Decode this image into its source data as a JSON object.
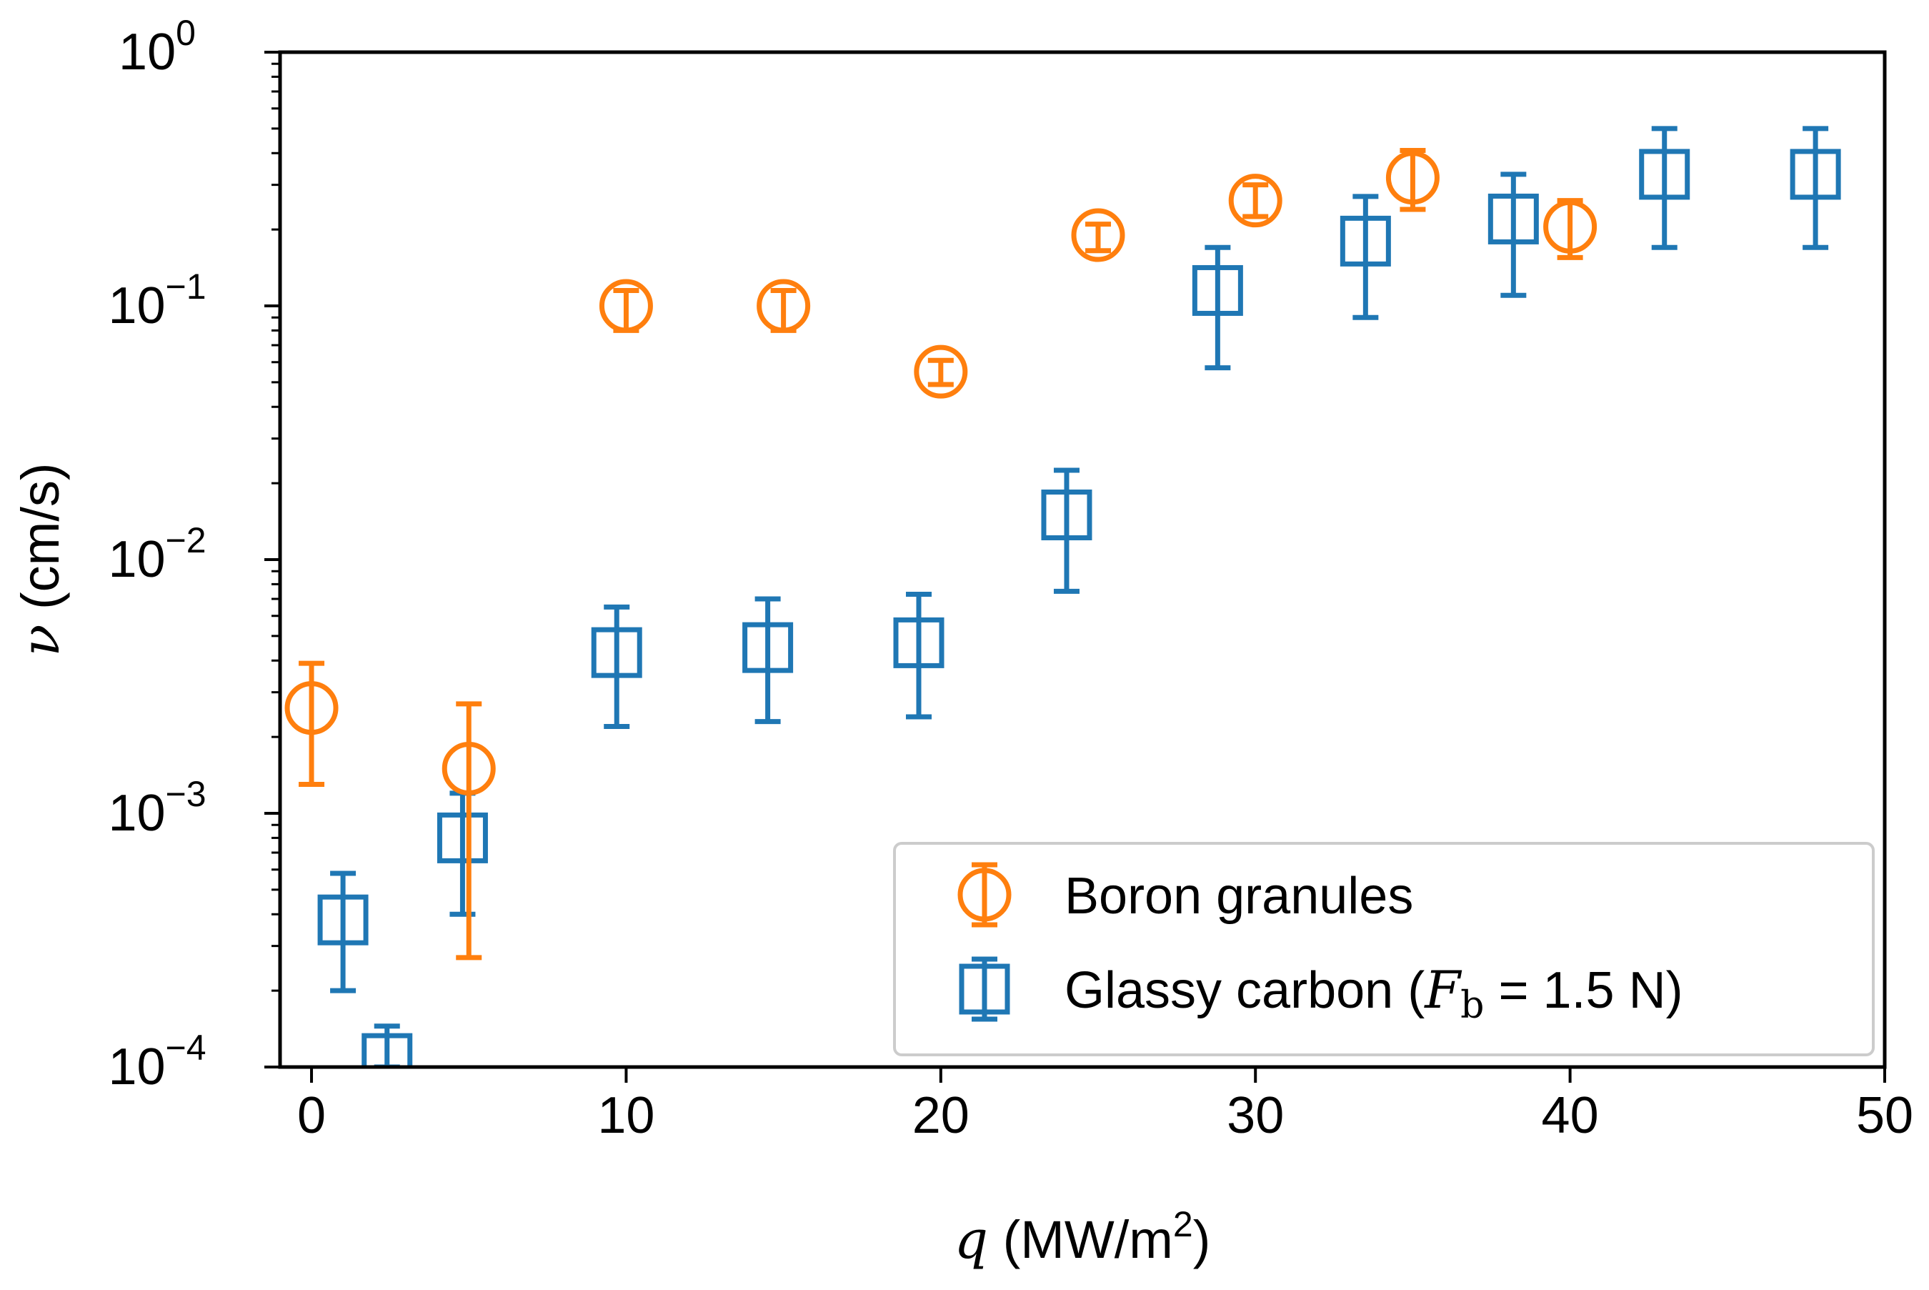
{
  "chart_data": {
    "type": "scatter",
    "title": "",
    "xlabel": {
      "symbol": "q",
      "text": "(MW/m",
      "sup": "2",
      "close": ")"
    },
    "ylabel": {
      "symbol": "ν",
      "text": "(cm/s)"
    },
    "xlim": [
      -1,
      50
    ],
    "ylim": [
      0.0001,
      1
    ],
    "yscale": "log",
    "grid": false,
    "legend_position": "lower-right",
    "xticks": [
      0,
      10,
      20,
      30,
      40,
      50
    ],
    "xtick_labels": [
      "0",
      "10",
      "20",
      "30",
      "40",
      "50"
    ],
    "yticks": [
      0.0001,
      0.001,
      0.01,
      0.1,
      1
    ],
    "ytick_labels": [
      {
        "base": "10",
        "exp": "−4"
      },
      {
        "base": "10",
        "exp": "−3"
      },
      {
        "base": "10",
        "exp": "−2"
      },
      {
        "base": "10",
        "exp": "−1"
      },
      {
        "base": "10",
        "exp": "0"
      }
    ],
    "series": [
      {
        "name": "Boron granules",
        "marker": "circle",
        "color": "#ff7f0e",
        "points": [
          {
            "x": 0,
            "y": 0.0026,
            "ylo": 0.0013,
            "yhi": 0.0039
          },
          {
            "x": 5,
            "y": 0.0015,
            "ylo": 0.00027,
            "yhi": 0.0027
          },
          {
            "x": 10,
            "y": 0.1,
            "ylo": 0.08,
            "yhi": 0.115
          },
          {
            "x": 15,
            "y": 0.1,
            "ylo": 0.08,
            "yhi": 0.115
          },
          {
            "x": 20,
            "y": 0.055,
            "ylo": 0.049,
            "yhi": 0.061
          },
          {
            "x": 25,
            "y": 0.19,
            "ylo": 0.165,
            "yhi": 0.21
          },
          {
            "x": 30,
            "y": 0.26,
            "ylo": 0.225,
            "yhi": 0.3
          },
          {
            "x": 35,
            "y": 0.32,
            "ylo": 0.24,
            "yhi": 0.41
          },
          {
            "x": 40,
            "y": 0.205,
            "ylo": 0.155,
            "yhi": 0.26
          }
        ]
      },
      {
        "name": "Glassy carbon (",
        "name_symbol": "F",
        "name_sub": "b",
        "name_tail": " = 1.5 N)",
        "marker": "square",
        "color": "#1f77b4",
        "points": [
          {
            "x": 1,
            "y": 0.00038,
            "ylo": 0.0002,
            "yhi": 0.00058
          },
          {
            "x": 2.4,
            "y": 0.000108,
            "ylo": 0.0001,
            "yhi": 0.000145
          },
          {
            "x": 4.8,
            "y": 0.0008,
            "ylo": 0.0004,
            "yhi": 0.0012
          },
          {
            "x": 9.7,
            "y": 0.0043,
            "ylo": 0.0022,
            "yhi": 0.0065
          },
          {
            "x": 14.5,
            "y": 0.0045,
            "ylo": 0.0023,
            "yhi": 0.007
          },
          {
            "x": 19.3,
            "y": 0.0047,
            "ylo": 0.0024,
            "yhi": 0.0073
          },
          {
            "x": 24,
            "y": 0.015,
            "ylo": 0.0075,
            "yhi": 0.0225
          },
          {
            "x": 28.8,
            "y": 0.115,
            "ylo": 0.057,
            "yhi": 0.17
          },
          {
            "x": 33.5,
            "y": 0.18,
            "ylo": 0.09,
            "yhi": 0.27
          },
          {
            "x": 38.2,
            "y": 0.22,
            "ylo": 0.11,
            "yhi": 0.33
          },
          {
            "x": 43,
            "y": 0.33,
            "ylo": 0.17,
            "yhi": 0.5
          },
          {
            "x": 47.8,
            "y": 0.33,
            "ylo": 0.17,
            "yhi": 0.5
          }
        ]
      }
    ]
  }
}
